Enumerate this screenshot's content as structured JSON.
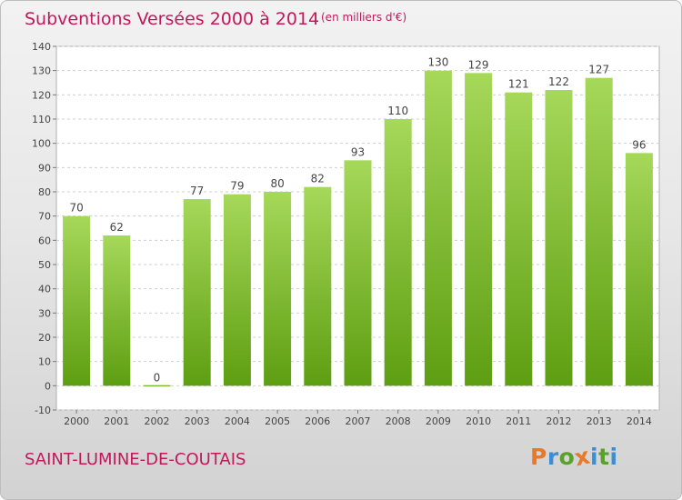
{
  "header": {
    "title": "Subventions Versées 2000 à 2014",
    "unit_note": "(en milliers d'€)"
  },
  "footer": {
    "commune": "SAINT-LUMINE-DE-COUTAIS",
    "brand": "Proxiti"
  },
  "colors": {
    "title": "#c2185b",
    "bar_light": "#a6d85a",
    "bar_dark": "#5e9e12",
    "brand_letters": [
      "#e8792a",
      "#3b8ed6",
      "#5aa02c",
      "#e8792a",
      "#3b8ed6",
      "#5aa02c",
      "#3b8ed6"
    ]
  },
  "chart_data": {
    "type": "bar",
    "title": "Subventions Versées 2000 à 2014",
    "subtitle": "(en milliers d'€)",
    "xlabel": "",
    "ylabel": "",
    "categories": [
      "2000",
      "2001",
      "2002",
      "2003",
      "2004",
      "2005",
      "2006",
      "2007",
      "2008",
      "2009",
      "2010",
      "2011",
      "2012",
      "2013",
      "2014"
    ],
    "values": [
      70,
      62,
      0,
      77,
      79,
      80,
      82,
      93,
      110,
      130,
      129,
      121,
      122,
      127,
      96
    ],
    "ylim": [
      -10,
      140
    ],
    "yticks": [
      -10,
      0,
      10,
      20,
      30,
      40,
      50,
      60,
      70,
      80,
      90,
      100,
      110,
      120,
      130,
      140
    ],
    "grid": true,
    "legend": "none"
  }
}
